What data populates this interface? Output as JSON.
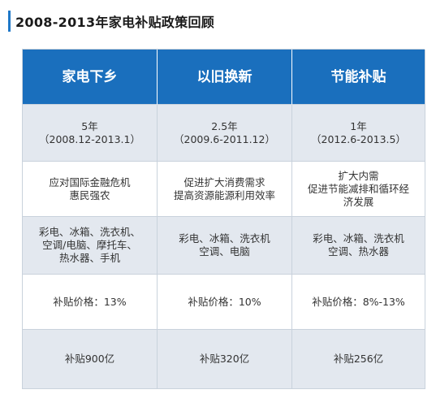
{
  "title": "2008-2013年家电补贴政策回顾",
  "columns": [
    {
      "header": "家电下乡",
      "period": [
        "5年",
        "（2008.12-2013.1）"
      ],
      "goal": [
        "应对国际金融危机",
        "惠民强农"
      ],
      "products": [
        "彩电、冰箱、洗衣机、",
        "空调/电脑、摩托车、",
        "热水器、手机"
      ],
      "price": "补贴价格：13%",
      "amount": "补贴900亿"
    },
    {
      "header": "以旧换新",
      "period": [
        "2.5年",
        "（2009.6-2011.12）"
      ],
      "goal": [
        "促进扩大消费需求",
        "提高资源能源利用效率"
      ],
      "products": [
        "彩电、冰箱、洗衣机",
        "空调、电脑"
      ],
      "price": "补贴价格：10%",
      "amount": "补贴320亿"
    },
    {
      "header": "节能补贴",
      "period": [
        "1年",
        "（2012.6-2013.5）"
      ],
      "goal": [
        "扩大内需",
        "促进节能减排和循环经",
        "济发展"
      ],
      "products": [
        "彩电、冰箱、洗衣机",
        "空调、热水器"
      ],
      "price": "补贴价格：8%-13%",
      "amount": "补贴256亿"
    }
  ],
  "colors": {
    "header_bg": "#1a6fbd",
    "accent": "#1f78c8",
    "row_alt_bg": "#e3e8ef"
  }
}
